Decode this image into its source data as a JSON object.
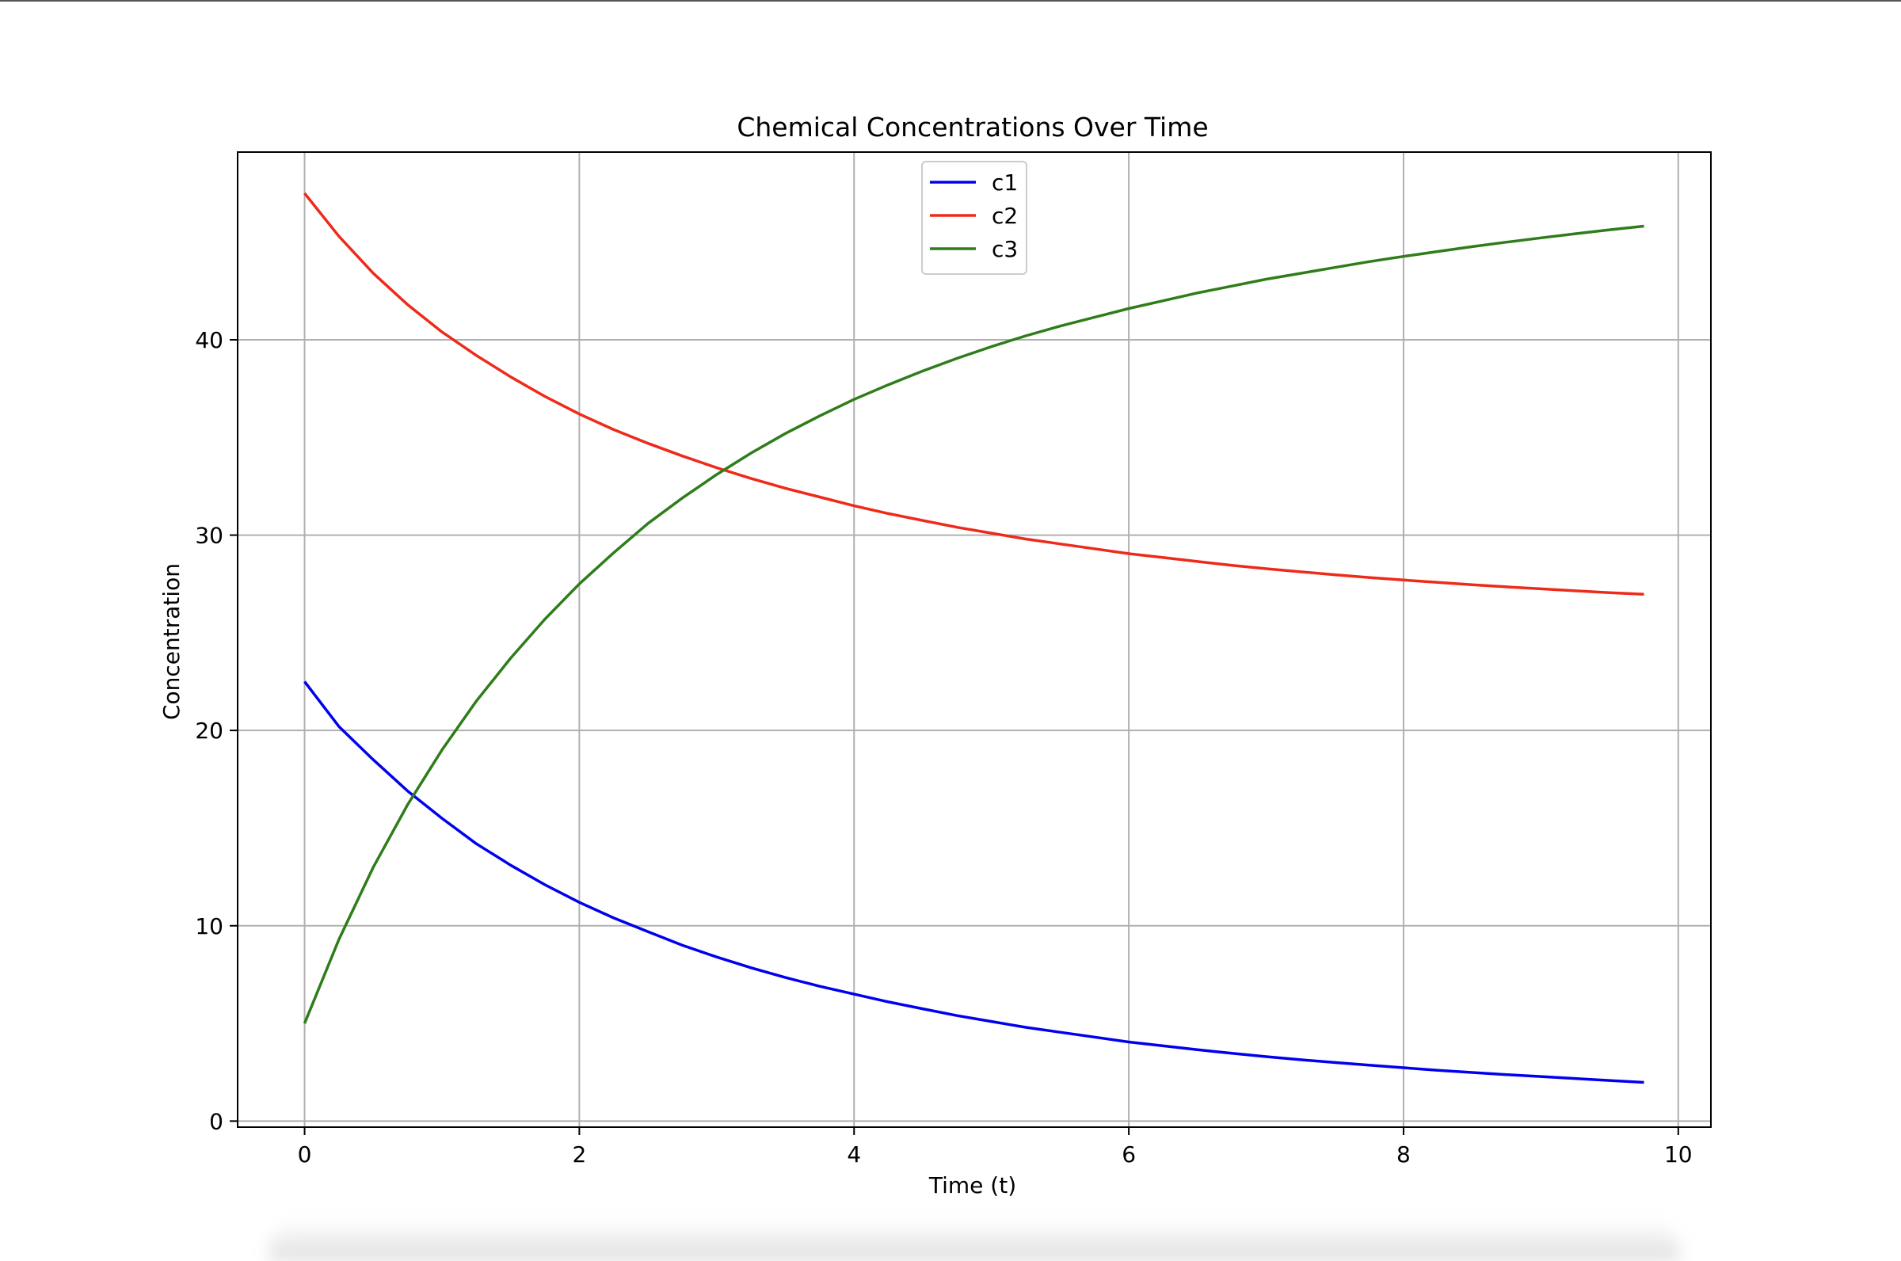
{
  "chart_data": {
    "type": "line",
    "title": "Chemical Concentrations Over Time",
    "xlabel": "Time (t)",
    "ylabel": "Concentration",
    "xlim": [
      -0.4875,
      10.2375
    ],
    "ylim": [
      -0.31,
      49.61
    ],
    "xticks": [
      0,
      2,
      4,
      6,
      8,
      10
    ],
    "yticks": [
      0,
      10,
      20,
      30,
      40
    ],
    "grid": true,
    "legend_position": "upper center",
    "x": [
      0,
      0.25,
      0.5,
      0.75,
      1,
      1.25,
      1.5,
      1.75,
      2,
      2.25,
      2.5,
      2.75,
      3,
      3.25,
      3.5,
      3.75,
      4,
      4.25,
      4.5,
      4.75,
      5,
      5.25,
      5.5,
      5.75,
      6,
      6.25,
      6.5,
      6.75,
      7,
      7.25,
      7.5,
      7.75,
      8,
      8.25,
      8.5,
      8.75,
      9,
      9.25,
      9.5,
      9.75
    ],
    "series": [
      {
        "name": "c1",
        "color": "#0000ee",
        "values": [
          22.5,
          20.2,
          18.5,
          16.9,
          15.5,
          14.2,
          13.1,
          12.1,
          11.2,
          10.4,
          9.7,
          9.0,
          8.4,
          7.85,
          7.35,
          6.9,
          6.5,
          6.1,
          5.75,
          5.4,
          5.1,
          4.8,
          4.55,
          4.3,
          4.05,
          3.85,
          3.65,
          3.47,
          3.3,
          3.14,
          3.0,
          2.86,
          2.73,
          2.6,
          2.49,
          2.38,
          2.28,
          2.18,
          2.08,
          1.98
        ]
      },
      {
        "name": "c2",
        "color": "#ee2a1a",
        "values": [
          47.5,
          45.3,
          43.4,
          41.8,
          40.4,
          39.2,
          38.1,
          37.1,
          36.2,
          35.4,
          34.7,
          34.05,
          33.45,
          32.9,
          32.4,
          31.95,
          31.5,
          31.1,
          30.75,
          30.4,
          30.1,
          29.8,
          29.55,
          29.3,
          29.05,
          28.85,
          28.65,
          28.45,
          28.28,
          28.12,
          27.97,
          27.83,
          27.7,
          27.58,
          27.46,
          27.35,
          27.25,
          27.15,
          27.05,
          26.97
        ]
      },
      {
        "name": "c3",
        "color": "#2e7d1a",
        "values": [
          5.0,
          9.3,
          13.0,
          16.2,
          19.0,
          21.5,
          23.7,
          25.7,
          27.5,
          29.1,
          30.6,
          31.9,
          33.1,
          34.2,
          35.2,
          36.1,
          36.95,
          37.7,
          38.4,
          39.05,
          39.65,
          40.2,
          40.7,
          41.15,
          41.6,
          42.0,
          42.4,
          42.75,
          43.1,
          43.4,
          43.7,
          44.0,
          44.27,
          44.52,
          44.77,
          45.0,
          45.22,
          45.43,
          45.63,
          45.82
        ]
      }
    ]
  }
}
